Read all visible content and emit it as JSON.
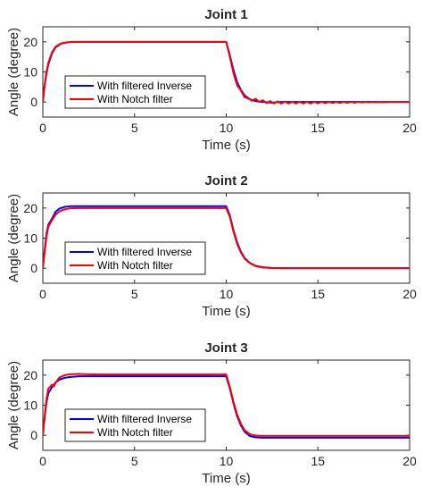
{
  "chart_data": [
    {
      "type": "line",
      "title": "Joint 1",
      "xlabel": "Time (s)",
      "ylabel": "Angle (degree)",
      "xlim": [
        0,
        20
      ],
      "ylim": [
        -5,
        25
      ],
      "xticks": [
        "0",
        "5",
        "10",
        "15",
        "20"
      ],
      "yticks": [
        "0",
        "10",
        "20"
      ],
      "grid": false,
      "legend_position": "lower-left",
      "series": [
        {
          "name": "With filtered Inverse",
          "color": "#0000ff",
          "x": [
            0,
            0.1,
            0.2,
            0.3,
            0.5,
            0.7,
            1.0,
            1.3,
            1.6,
            2.0,
            3,
            5,
            8,
            9.9,
            10.0,
            10.2,
            10.4,
            10.6,
            10.8,
            11.0,
            11.3,
            11.6,
            12.0,
            12.5,
            13.0,
            14,
            16,
            18,
            20
          ],
          "y": [
            0,
            5.5,
            9.5,
            12.5,
            16.2,
            18.2,
            19.4,
            19.8,
            19.95,
            20.0,
            20,
            20,
            20,
            20,
            20,
            15.5,
            10.5,
            6.5,
            4.0,
            2.2,
            0.9,
            0.3,
            0.0,
            -0.2,
            0.0,
            0,
            0,
            0,
            0
          ]
        },
        {
          "name": "With Notch filter",
          "color": "#ff0000",
          "x": [
            0,
            0.1,
            0.2,
            0.3,
            0.5,
            0.7,
            1.0,
            1.3,
            1.6,
            2.0,
            3,
            5,
            8,
            9.9,
            10.0,
            10.2,
            10.4,
            10.6,
            10.8,
            11.0,
            11.2,
            11.4,
            11.6,
            11.8,
            12.0,
            12.2,
            12.4,
            12.6,
            12.8,
            13.0,
            13.2,
            13.4,
            13.6,
            13.8,
            14.0,
            14.2,
            14.4,
            14.6,
            14.8,
            15.0,
            15.2,
            15.4,
            15.6,
            15.8,
            16.0,
            16.2,
            16.4,
            16.6,
            16.8,
            17.0,
            17.2,
            17.4,
            17.6,
            17.8,
            18.0,
            18.2,
            18.4,
            18.6,
            18.8,
            19.0,
            20
          ],
          "y": [
            0,
            5.8,
            10,
            13,
            16.5,
            18.4,
            19.5,
            19.85,
            19.97,
            20.0,
            20,
            20,
            20,
            20,
            20,
            15,
            9.5,
            5.5,
            3.8,
            1.6,
            1.2,
            0.4,
            1.1,
            0.0,
            0.6,
            -0.4,
            0.3,
            -0.5,
            0.2,
            -0.5,
            0.1,
            -0.5,
            0.1,
            -0.5,
            0.1,
            -0.5,
            0.1,
            -0.5,
            0.1,
            -0.45,
            0.1,
            -0.4,
            0.05,
            -0.35,
            0.05,
            -0.3,
            0.05,
            -0.25,
            0.05,
            -0.2,
            0.05,
            -0.15,
            0.05,
            -0.1,
            0.0,
            -0.1,
            0.0,
            -0.05,
            0.0,
            0.0,
            0
          ]
        }
      ]
    },
    {
      "type": "line",
      "title": "Joint 2",
      "xlabel": "Time (s)",
      "ylabel": "Angle (degree)",
      "xlim": [
        0,
        20
      ],
      "ylim": [
        -5,
        25
      ],
      "xticks": [
        "0",
        "5",
        "10",
        "15",
        "20"
      ],
      "yticks": [
        "0",
        "10",
        "20"
      ],
      "grid": false,
      "legend_position": "lower-left",
      "series": [
        {
          "name": "With filtered Inverse",
          "color": "#0000ff",
          "x": [
            0,
            0.1,
            0.2,
            0.3,
            0.5,
            0.7,
            0.9,
            1.2,
            1.5,
            2.0,
            3,
            5,
            8,
            9.9,
            10.0,
            10.2,
            10.4,
            10.6,
            10.8,
            11.0,
            11.3,
            11.6,
            12.0,
            12.5,
            13,
            15,
            20
          ],
          "y": [
            0,
            6,
            11.5,
            14.5,
            16.5,
            18.8,
            19.8,
            20.4,
            20.6,
            20.6,
            20.6,
            20.6,
            20.6,
            20.6,
            20.6,
            17.5,
            12.5,
            8.5,
            5.5,
            3.4,
            1.7,
            0.8,
            0.3,
            0.1,
            0,
            0,
            0
          ]
        },
        {
          "name": "With Notch filter",
          "color": "#ff0000",
          "x": [
            0,
            0.1,
            0.2,
            0.3,
            0.5,
            0.7,
            0.9,
            1.2,
            1.5,
            2.0,
            3,
            5,
            8,
            9.9,
            10.0,
            10.2,
            10.4,
            10.6,
            10.8,
            11.0,
            11.3,
            11.6,
            12.0,
            12.5,
            13,
            15,
            20
          ],
          "y": [
            0,
            5.5,
            10.5,
            13.8,
            16,
            17.8,
            18.9,
            19.6,
            19.9,
            20.0,
            20,
            20,
            20,
            20,
            20,
            17,
            12,
            8,
            5.2,
            3.2,
            1.6,
            0.7,
            0.2,
            0.05,
            0,
            0,
            0
          ]
        }
      ]
    },
    {
      "type": "line",
      "title": "Joint 3",
      "xlabel": "Time (s)",
      "ylabel": "Angle (degree)",
      "xlim": [
        0,
        20
      ],
      "ylim": [
        -5,
        25
      ],
      "xticks": [
        "0",
        "5",
        "10",
        "15",
        "20"
      ],
      "yticks": [
        "0",
        "10",
        "20"
      ],
      "grid": false,
      "legend_position": "lower-left",
      "series": [
        {
          "name": "With filtered Inverse",
          "color": "#0000ff",
          "x": [
            0,
            0.1,
            0.2,
            0.3,
            0.5,
            0.7,
            0.9,
            1.2,
            1.5,
            2.0,
            3,
            5,
            8,
            9.9,
            10.0,
            10.2,
            10.4,
            10.6,
            10.8,
            11.0,
            11.3,
            11.6,
            12.0,
            12.5,
            13,
            15,
            20
          ],
          "y": [
            0,
            6,
            11,
            14,
            16,
            17.6,
            18.5,
            19.1,
            19.4,
            19.6,
            19.6,
            19.6,
            19.6,
            19.6,
            19.6,
            15.5,
            10.5,
            6.2,
            3.3,
            1.2,
            -0.3,
            -0.7,
            -0.8,
            -0.8,
            -0.8,
            -0.8,
            -0.8
          ]
        },
        {
          "name": "With Notch filter",
          "color": "#ff0000",
          "x": [
            0,
            0.1,
            0.2,
            0.3,
            0.5,
            0.6,
            0.7,
            0.9,
            1.2,
            1.5,
            2.0,
            2.5,
            3,
            5,
            8,
            9.9,
            10.0,
            10.2,
            10.4,
            10.6,
            10.8,
            11.0,
            11.3,
            11.6,
            12.0,
            12.5,
            13,
            15,
            20
          ],
          "y": [
            0,
            6.5,
            12,
            15.5,
            16.8,
            16.2,
            17.5,
            19.2,
            20.0,
            20.3,
            20.4,
            20.3,
            20.2,
            20.2,
            20.2,
            20.2,
            20.2,
            16,
            11,
            6.8,
            3.8,
            1.7,
            0.3,
            -0.1,
            -0.2,
            -0.2,
            -0.2,
            -0.2,
            -0.2
          ]
        }
      ]
    }
  ]
}
